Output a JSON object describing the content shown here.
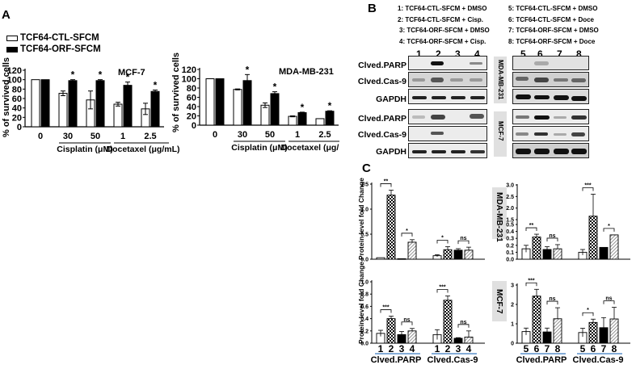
{
  "panels": {
    "A": {
      "letter": "A",
      "legend": [
        {
          "label": "TCF64-CTL-SFCM",
          "fill": "#ffffff"
        },
        {
          "label": "TCF64-ORF-SFCM",
          "fill": "#000000"
        }
      ],
      "ylabel": "% of survived cells"
    },
    "B": {
      "letter": "B",
      "key_left": [
        "1: TCF64-CTL-SFCM + DMSO",
        "2: TCF64-CTL-SFCM + Cisp.",
        "3: TCF64-ORF-SFCM + DMSO",
        "4: TCF64-ORF-SFCM + Cisp."
      ],
      "key_right": [
        "5: TCF64-CTL-SFCM + DMSO",
        "6: TCF64-CTL-SFCM + Doce",
        "7: TCF64-ORF-SFCM + DMSO",
        "8: TCF64-ORF-SFCM + Doce"
      ],
      "lanes_left": [
        "1",
        "2",
        "3",
        "4"
      ],
      "lanes_right": [
        "5",
        "6",
        "7",
        "8"
      ],
      "row_labels": [
        "Clved.PARP",
        "Clved.Cas-9",
        "GAPDH"
      ],
      "cell_lines": [
        "MDA-MB-231",
        "MCF-7"
      ]
    },
    "C": {
      "letter": "C",
      "ylabel": "Protein level fold Change",
      "cell_lines": [
        "MDA-MB-231",
        "MCF-7"
      ],
      "group_labels": [
        "Clved.PARP",
        "Clved.Cas-9"
      ]
    }
  },
  "chart_data": [
    {
      "id": "A-MCF7",
      "type": "bar",
      "title": "MCF-7",
      "xlabel_groups": [
        "Cisplatin (μM)",
        "Docetaxel (μg/mL)"
      ],
      "ylabel": "% of survived cells",
      "categories": [
        "0",
        "30",
        "50",
        "1",
        "2.5"
      ],
      "ylim": [
        0,
        120
      ],
      "yticks": [
        0,
        20,
        40,
        60,
        80,
        100,
        120
      ],
      "series": [
        {
          "name": "TCF64-CTL-SFCM",
          "values": [
            100,
            71,
            57,
            48,
            38
          ],
          "errors": [
            0,
            5,
            19,
            4,
            12
          ]
        },
        {
          "name": "TCF64-ORF-SFCM",
          "values": [
            100,
            98,
            98,
            88,
            75
          ],
          "errors": [
            0,
            2,
            2,
            7,
            3
          ]
        }
      ],
      "significance": [
        "",
        "*",
        "*",
        "*",
        "*"
      ]
    },
    {
      "id": "A-MDA",
      "type": "bar",
      "title": "MDA-MB-231",
      "xlabel_groups": [
        "Cisplatin (μM)",
        "Docetaxel (μg/mL)"
      ],
      "ylabel": "% of survived cells",
      "categories": [
        "0",
        "30",
        "50",
        "1",
        "2.5"
      ],
      "ylim": [
        0,
        120
      ],
      "yticks": [
        0,
        20,
        40,
        60,
        80,
        100,
        120
      ],
      "series": [
        {
          "name": "TCF64-CTL-SFCM",
          "values": [
            100,
            77,
            43,
            19,
            14
          ],
          "errors": [
            0,
            1,
            5,
            1,
            0
          ]
        },
        {
          "name": "TCF64-ORF-SFCM",
          "values": [
            100,
            96,
            68,
            27,
            30
          ],
          "errors": [
            0,
            13,
            4,
            1,
            1
          ]
        }
      ],
      "significance": [
        "",
        "*",
        "*",
        "*",
        "*"
      ]
    },
    {
      "id": "C-MDA-cisp",
      "type": "bar",
      "cell_line": "MDA-MB-231",
      "ylabel": "Protein level fold Change",
      "ylim": [
        0,
        1.5
      ],
      "yticks": [
        "0.0",
        "0.5",
        "1.0",
        "1.5"
      ],
      "groups": [
        {
          "name": "Clved.PARP",
          "lanes": [
            "1",
            "2",
            "3",
            "4"
          ],
          "values": [
            0.03,
            1.28,
            0.01,
            0.34
          ],
          "errors": [
            0,
            0.1,
            0,
            0.05
          ],
          "sig": [
            "**",
            "*"
          ]
        },
        {
          "name": "Clved.Cas-9",
          "lanes": [
            "1",
            "2",
            "3",
            "4"
          ],
          "values": [
            0.07,
            0.19,
            0.18,
            0.18
          ],
          "errors": [
            0.02,
            0.06,
            0.03,
            0.06
          ],
          "sig": [
            "*",
            "ns"
          ]
        }
      ]
    },
    {
      "id": "C-MDA-doce",
      "type": "bar",
      "cell_line": "MDA-MB-231",
      "ylim": [
        0,
        3.0
      ],
      "axis_break": [
        0.5,
        1.5
      ],
      "yticks": [
        "0.0",
        "0.1",
        "0.2",
        "0.3",
        "0.4",
        "0.5",
        "1.5",
        "2.0",
        "2.5",
        "3.0"
      ],
      "groups": [
        {
          "name": "Clved.PARP",
          "lanes": [
            "5",
            "6",
            "7",
            "8"
          ],
          "values": [
            0.15,
            0.32,
            0.14,
            0.15
          ],
          "errors": [
            0.05,
            0.04,
            0.04,
            0.06
          ],
          "sig": [
            "**",
            "ns"
          ]
        },
        {
          "name": "Clved.Cas-9",
          "lanes": [
            "5",
            "6",
            "7",
            "8"
          ],
          "values": [
            0.1,
            1.65,
            0.17,
            0.35
          ],
          "errors": [
            0.04,
            0.95,
            0,
            0
          ],
          "sig": [
            "***",
            "*"
          ]
        }
      ]
    },
    {
      "id": "C-MCF7-cisp",
      "type": "bar",
      "cell_line": "MCF-7",
      "ylabel": "Protein level fold Change",
      "ylim": [
        0,
        1.0
      ],
      "yticks": [
        "0.0",
        "0.2",
        "0.4",
        "0.6",
        "0.8",
        "1.0"
      ],
      "groups": [
        {
          "name": "Clved.PARP",
          "lanes": [
            "1",
            "2",
            "3",
            "4"
          ],
          "values": [
            0.16,
            0.4,
            0.14,
            0.2
          ],
          "errors": [
            0.05,
            0.04,
            0.05,
            0.04
          ],
          "sig": [
            "***",
            "ns"
          ]
        },
        {
          "name": "Clved.Cas-9",
          "lanes": [
            "1",
            "2",
            "3",
            "4"
          ],
          "values": [
            0.14,
            0.7,
            0.08,
            0.1
          ],
          "errors": [
            0.08,
            0.07,
            0.01,
            0.1
          ],
          "sig": [
            "***",
            "ns"
          ]
        }
      ]
    },
    {
      "id": "C-MCF7-doce",
      "type": "bar",
      "cell_line": "MCF-7",
      "ylim": [
        0,
        3
      ],
      "yticks": [
        "0",
        "1",
        "2",
        "3"
      ],
      "groups": [
        {
          "name": "Clved.PARP",
          "lanes": [
            "5",
            "6",
            "7",
            "8"
          ],
          "values": [
            0.6,
            2.43,
            0.58,
            1.26
          ],
          "errors": [
            0.18,
            0.35,
            0.2,
            0.57
          ],
          "sig": [
            "***",
            "ns"
          ]
        },
        {
          "name": "Clved.Cas-9",
          "lanes": [
            "5",
            "6",
            "7",
            "8"
          ],
          "values": [
            0.55,
            1.07,
            0.8,
            1.25
          ],
          "errors": [
            0.22,
            0.17,
            0.52,
            0.6
          ],
          "sig": [
            "*",
            "ns"
          ]
        }
      ]
    }
  ]
}
